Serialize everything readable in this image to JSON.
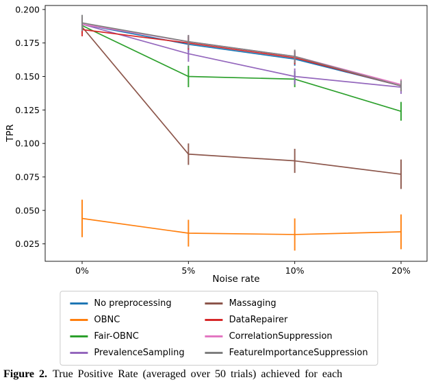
{
  "figure": {
    "caption_label": "Figure 2.",
    "caption_text": "True Positive Rate (averaged over 50 trials) achieved for each"
  },
  "chart_data": {
    "type": "line",
    "title": "",
    "xlabel": "Noise rate",
    "ylabel": "TPR",
    "x_categories": [
      "0%",
      "5%",
      "10%",
      "20%"
    ],
    "ylim": [
      0.012,
      0.203
    ],
    "yticks": [
      0.025,
      0.05,
      0.075,
      0.1,
      0.125,
      0.15,
      0.175,
      0.2
    ],
    "grid": false,
    "error_bars": true,
    "legend_position": "below-two-columns",
    "series": [
      {
        "name": "No preprocessing",
        "color": "#1f77b4",
        "values": [
          0.189,
          0.174,
          0.163,
          0.143
        ],
        "errors": [
          0.005,
          0.006,
          0.005,
          0.004
        ]
      },
      {
        "name": "OBNC",
        "color": "#ff7f0e",
        "values": [
          0.044,
          0.033,
          0.032,
          0.034
        ],
        "errors": [
          0.014,
          0.01,
          0.012,
          0.013
        ]
      },
      {
        "name": "Fair-OBNC",
        "color": "#2ca02c",
        "values": [
          0.188,
          0.15,
          0.148,
          0.124
        ],
        "errors": [
          0.005,
          0.008,
          0.006,
          0.007
        ]
      },
      {
        "name": "PrevalenceSampling",
        "color": "#9467bd",
        "values": [
          0.189,
          0.167,
          0.15,
          0.142
        ],
        "errors": [
          0.005,
          0.006,
          0.006,
          0.005
        ]
      },
      {
        "name": "Massaging",
        "color": "#8c564b",
        "values": [
          0.187,
          0.092,
          0.087,
          0.077
        ],
        "errors": [
          0.005,
          0.008,
          0.009,
          0.011
        ]
      },
      {
        "name": "DataRepairer",
        "color": "#d62728",
        "values": [
          0.185,
          0.175,
          0.164,
          0.143
        ],
        "errors": [
          0.005,
          0.005,
          0.005,
          0.004
        ]
      },
      {
        "name": "CorrelationSuppression",
        "color": "#e377c2",
        "values": [
          0.189,
          0.176,
          0.165,
          0.144
        ],
        "errors": [
          0.005,
          0.005,
          0.004,
          0.004
        ]
      },
      {
        "name": "FeatureImportanceSuppression",
        "color": "#7f7f7f",
        "values": [
          0.19,
          0.176,
          0.165,
          0.143
        ],
        "errors": [
          0.006,
          0.005,
          0.005,
          0.004
        ]
      }
    ]
  }
}
